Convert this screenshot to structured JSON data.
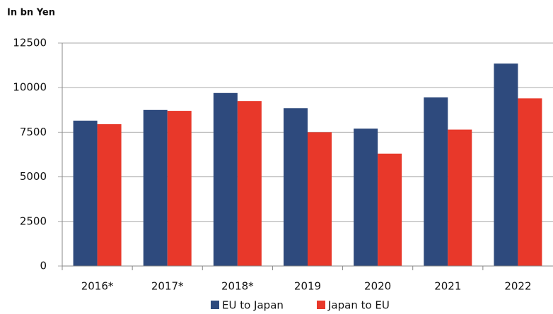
{
  "chart_data": {
    "type": "bar",
    "title": "In bn Yen",
    "categories": [
      "2016*",
      "2017*",
      "2018*",
      "2019",
      "2020",
      "2021",
      "2022"
    ],
    "series": [
      {
        "name": "EU to Japan",
        "color": "#2e4a7d",
        "values": [
          8150,
          8750,
          9700,
          8850,
          7700,
          9450,
          11350
        ]
      },
      {
        "name": "Japan to EU",
        "color": "#e8382a",
        "values": [
          7950,
          8700,
          9250,
          7500,
          6300,
          7650,
          9400
        ]
      }
    ],
    "ylim": [
      0,
      12500
    ],
    "yticks": [
      0,
      2500,
      5000,
      7500,
      10000,
      12500
    ],
    "grid": true,
    "legend": "bottom"
  }
}
